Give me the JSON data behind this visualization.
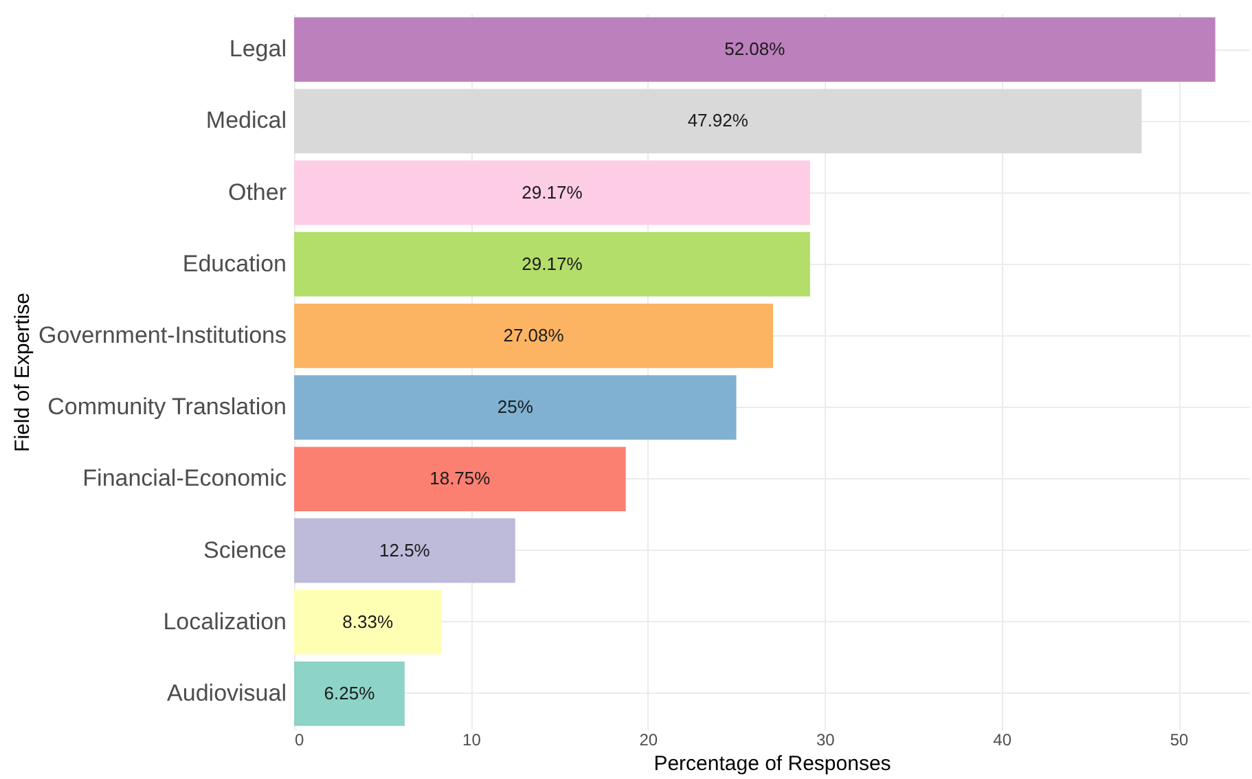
{
  "chart_data": {
    "type": "bar",
    "orientation": "horizontal",
    "xlabel": "Percentage of Responses",
    "ylabel": "Field of Expertise",
    "categories": [
      "Legal",
      "Medical",
      "Other",
      "Education",
      "Government-Institutions",
      "Community Translation",
      "Financial-Economic",
      "Science",
      "Localization",
      "Audiovisual"
    ],
    "values": [
      52.08,
      47.92,
      29.17,
      29.17,
      27.08,
      25,
      18.75,
      12.5,
      8.33,
      6.25
    ],
    "value_labels": [
      "52.08%",
      "47.92%",
      "29.17%",
      "29.17%",
      "27.08%",
      "25%",
      "18.75%",
      "12.5%",
      "8.33%",
      "6.25%"
    ],
    "colors": [
      "#bc80bd",
      "#d9d9d9",
      "#fccde5",
      "#b3de69",
      "#fdb462",
      "#80b1d3",
      "#fb8072",
      "#bebada",
      "#ffffb3",
      "#8dd3c7"
    ],
    "xlim": [
      0,
      54
    ],
    "xticks": [
      0,
      10,
      20,
      30,
      40,
      50
    ],
    "grid": true
  }
}
